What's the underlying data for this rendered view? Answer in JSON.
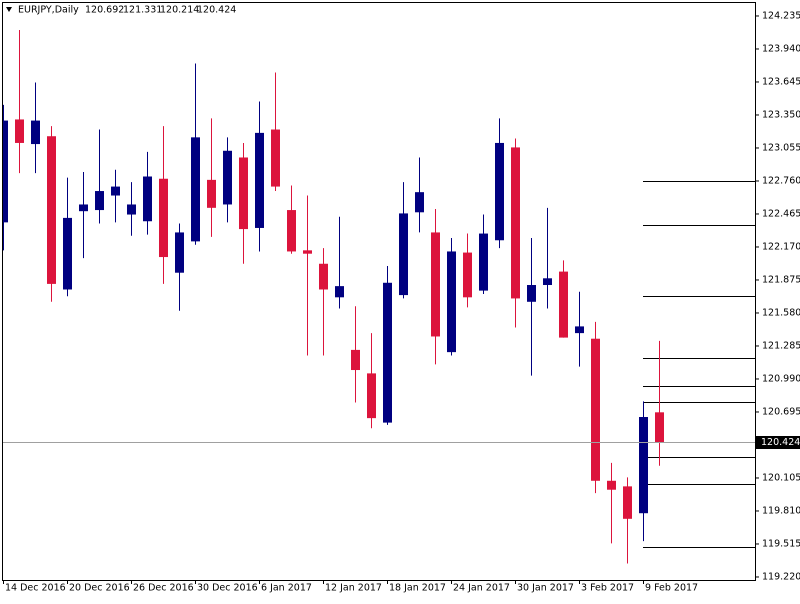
{
  "chart_data": {
    "type": "candlestick",
    "symbol": "EURJPY,Daily",
    "categories": [
      "14 Dec 2016",
      null,
      null,
      null,
      "20 Dec 2016",
      null,
      null,
      null,
      "26 Dec 2016",
      null,
      null,
      null,
      "30 Dec 2016",
      null,
      null,
      null,
      "6 Jan 2017",
      null,
      null,
      null,
      "12 Jan 2017",
      null,
      null,
      null,
      "18 Jan 2017",
      null,
      null,
      null,
      "24 Jan 2017",
      null,
      null,
      null,
      "30 Jan 2017",
      null,
      null,
      null,
      "3 Feb 2017",
      null,
      null,
      null,
      "9 Feb 2017",
      null
    ],
    "open": [
      122.39,
      123.31,
      123.09,
      123.16,
      121.79,
      122.49,
      122.5,
      122.63,
      122.46,
      122.4,
      122.78,
      121.94,
      122.22,
      122.77,
      122.55,
      122.97,
      122.34,
      123.22,
      122.5,
      122.14,
      122.02,
      121.72,
      121.25,
      121.04,
      120.6,
      121.74,
      122.48,
      122.3,
      121.23,
      122.12,
      121.78,
      122.23,
      123.06,
      121.68,
      121.83,
      121.95,
      121.4,
      121.35,
      120.08,
      120.03,
      119.79,
      120.692
    ],
    "high": [
      123.44,
      124.11,
      123.64,
      123.25,
      122.79,
      122.84,
      123.22,
      122.86,
      122.75,
      123.02,
      123.25,
      122.38,
      123.81,
      123.32,
      123.15,
      123.1,
      123.47,
      123.73,
      122.72,
      122.63,
      122.16,
      122.44,
      121.64,
      121.4,
      122.0,
      122.75,
      122.97,
      122.51,
      122.25,
      122.29,
      122.46,
      123.32,
      123.14,
      122.25,
      122.52,
      122.05,
      121.77,
      121.5,
      120.24,
      120.11,
      120.79,
      121.331
    ],
    "low": [
      122.14,
      122.83,
      122.83,
      121.68,
      121.73,
      122.07,
      122.38,
      122.39,
      122.27,
      122.28,
      121.84,
      121.6,
      122.19,
      122.26,
      122.39,
      122.02,
      122.13,
      122.67,
      122.11,
      121.2,
      121.2,
      121.62,
      120.78,
      120.55,
      120.58,
      121.71,
      122.3,
      121.12,
      121.2,
      121.63,
      121.75,
      122.16,
      121.45,
      121.02,
      121.62,
      121.36,
      121.1,
      119.97,
      119.52,
      119.34,
      119.54,
      120.214
    ],
    "close": [
      123.3,
      123.1,
      123.3,
      121.84,
      122.43,
      122.55,
      122.67,
      122.71,
      122.55,
      122.8,
      122.08,
      122.3,
      123.15,
      122.52,
      123.03,
      122.33,
      123.19,
      122.71,
      122.13,
      122.11,
      121.79,
      121.82,
      121.07,
      120.64,
      121.85,
      122.47,
      122.66,
      121.37,
      122.13,
      121.72,
      122.29,
      123.1,
      121.71,
      121.83,
      121.89,
      121.36,
      121.46,
      120.08,
      120.0,
      119.74,
      120.65,
      120.424
    ],
    "up_color": "#000080",
    "down_color": "#dc143c",
    "levels": [
      122.76,
      122.37,
      121.73,
      121.18,
      120.93,
      120.78,
      120.29,
      120.05,
      119.49
    ],
    "ylim": [
      119.193,
      124.351
    ],
    "yticks": [
      124.235,
      {
        "value": 123.94,
        "label": "123.940"
      },
      123.645,
      {
        "value": 123.35,
        "label": "123.350"
      },
      123.055,
      {
        "value": 122.76,
        "label": "122.760"
      },
      122.465,
      {
        "value": 122.17,
        "label": "122.170"
      },
      121.875,
      {
        "value": 121.58,
        "label": "121.580"
      },
      121.285,
      {
        "value": 120.99,
        "label": "120.990"
      },
      120.695,
      120.105,
      {
        "value": 119.81,
        "label": "119.810"
      },
      119.515,
      {
        "value": 119.22,
        "label": "119.220"
      }
    ]
  }
}
